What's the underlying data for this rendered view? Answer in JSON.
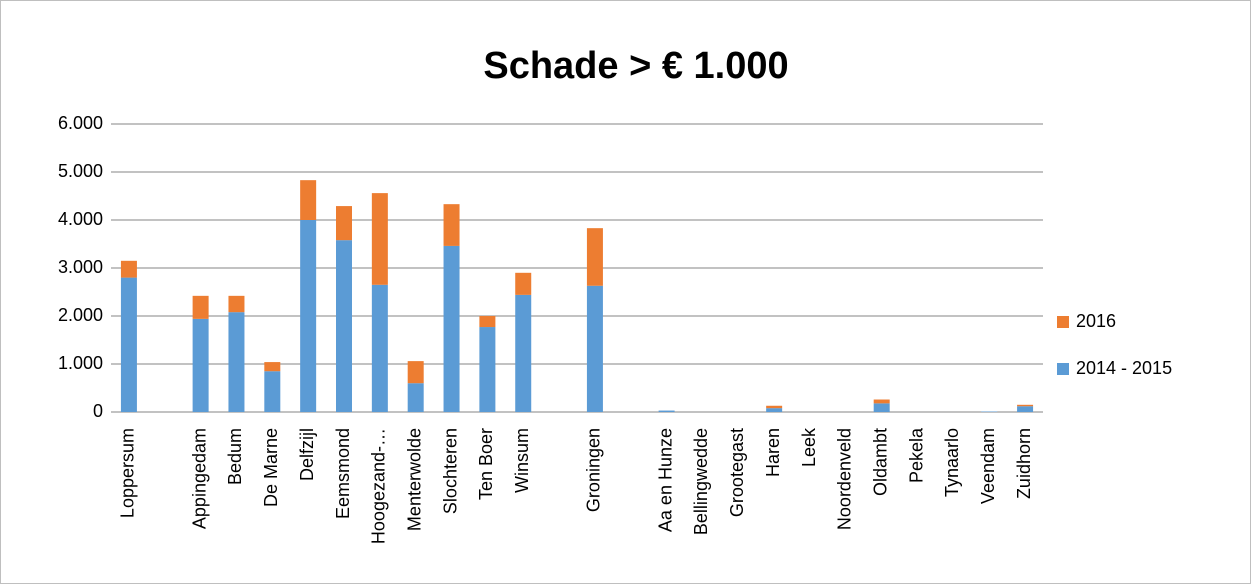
{
  "chart_data": {
    "type": "bar",
    "stacked": true,
    "title": "Schade > € 1.000",
    "categories": [
      "Loppersum",
      null,
      "Appingedam",
      "Bedum",
      "De Marne",
      "Delfzijl",
      "Eemsmond",
      "Hoogezand-…",
      "Menterwolde",
      "Slochteren",
      "Ten Boer",
      "Winsum",
      null,
      "Groningen",
      null,
      "Aa en Hunze",
      "Bellingwedde",
      "Grootegast",
      "Haren",
      "Leek",
      "Noordenveld",
      "Oldambt",
      "Pekela",
      "Tynaarlo",
      "Veendam",
      "Zuidhorn"
    ],
    "series": [
      {
        "name": "2014 - 2015",
        "color": "#5b9bd5",
        "values": [
          2800,
          null,
          1940,
          2080,
          850,
          4000,
          3580,
          2650,
          600,
          3460,
          1770,
          2440,
          null,
          2630,
          null,
          30,
          0,
          0,
          80,
          0,
          0,
          180,
          0,
          0,
          10,
          120
        ]
      },
      {
        "name": "2016",
        "color": "#ed7d31",
        "values": [
          350,
          null,
          480,
          340,
          190,
          830,
          710,
          1910,
          460,
          870,
          230,
          460,
          null,
          1200,
          null,
          0,
          0,
          0,
          50,
          0,
          0,
          80,
          0,
          0,
          0,
          30
        ]
      }
    ],
    "ylim": [
      0,
      6000
    ],
    "yticks": [
      0,
      {
        "value": 1000,
        "label": "1.000"
      },
      {
        "value": 2000,
        "label": "2.000"
      },
      {
        "value": 3000,
        "label": "3.000"
      },
      {
        "value": 4000,
        "label": "4.000"
      },
      {
        "value": 5000,
        "label": "5.000"
      },
      {
        "value": 6000,
        "label": "6.000"
      }
    ],
    "grid": true,
    "legend": "right"
  }
}
